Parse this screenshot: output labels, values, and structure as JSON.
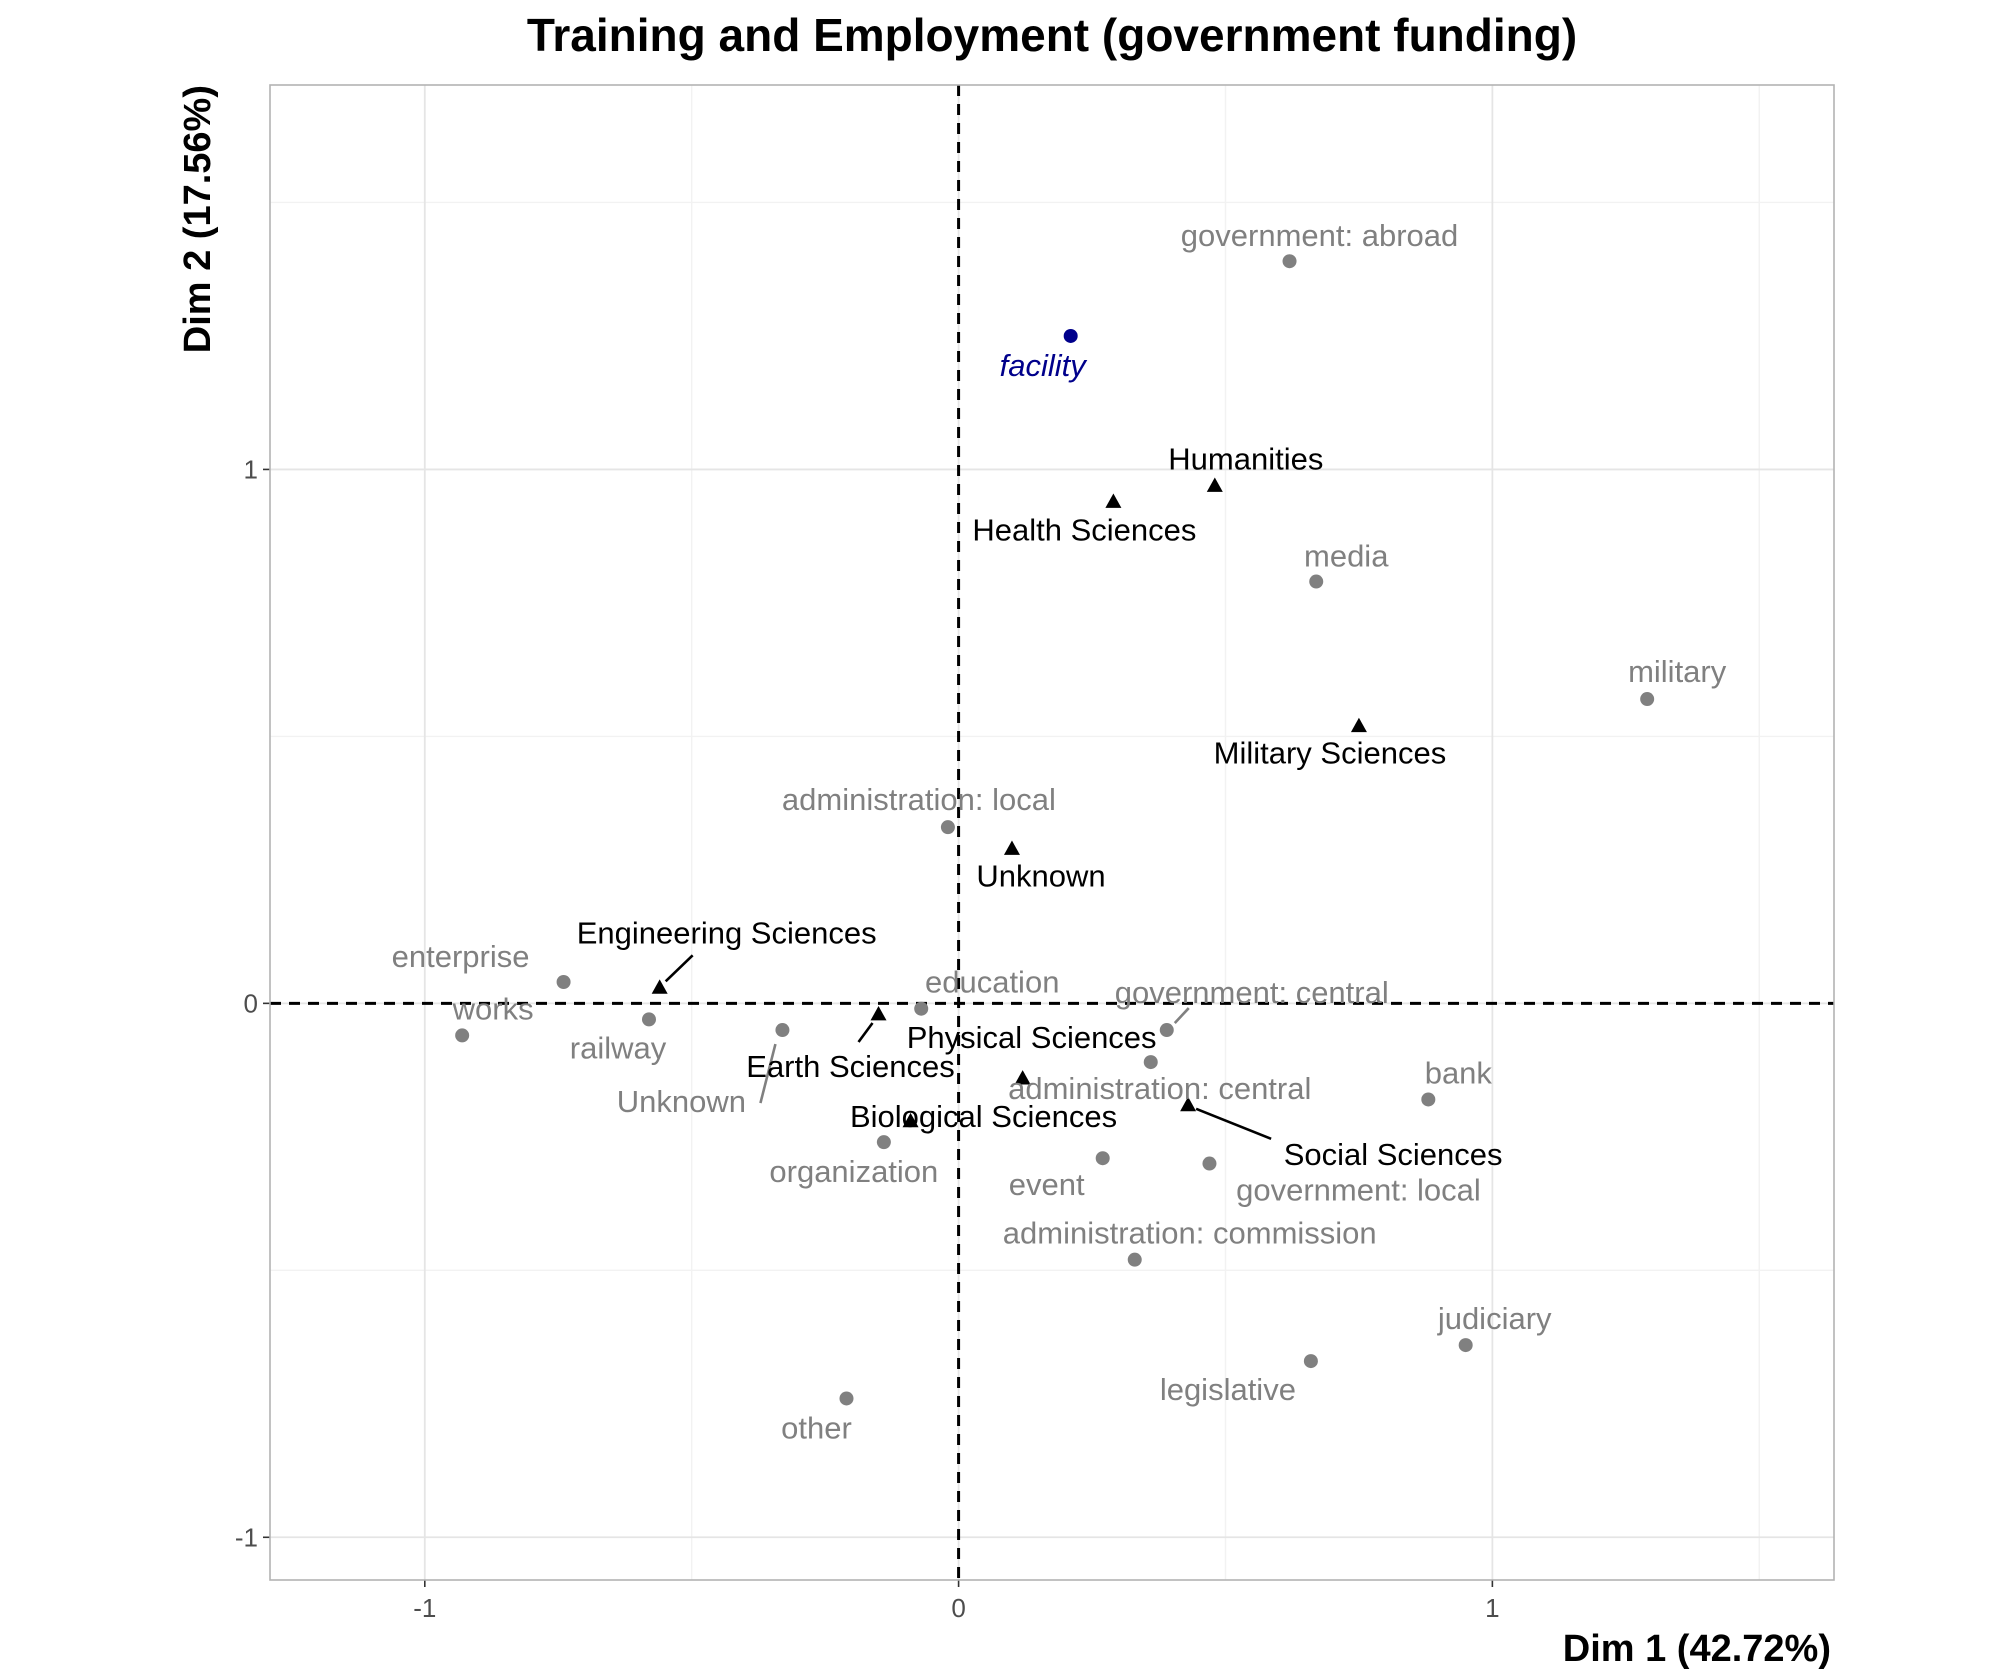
{
  "chart_data": {
    "type": "scatter",
    "title": "Training and Employment (government funding)",
    "xlabel": "Dim 1 (42.72%)",
    "ylabel": "Dim 2 (17.56%)",
    "xlim": [
      -1.29,
      1.64
    ],
    "ylim": [
      -1.08,
      1.72
    ],
    "x_ticks": [
      -1,
      0,
      1
    ],
    "y_ticks": [
      -1,
      0,
      1
    ],
    "x_tick_labels": [
      "-1",
      "0",
      "1"
    ],
    "y_tick_labels": [
      "-1",
      "0",
      "1"
    ],
    "grid": true,
    "legend": "none",
    "reference_lines": {
      "x": 0,
      "y": 0,
      "style": "dashed"
    },
    "colors": {
      "employment": "#808080",
      "training": "#000000",
      "supplementary": "#00008b",
      "grid_major": "#e5e5e5",
      "grid_minor": "#f2f2f2",
      "panel_border": "#b3b3b3"
    },
    "series": [
      {
        "name": "",
        "marker": "circle",
        "color": "#808080",
        "points": [
          {
            "label": "government: abroad",
            "x": 0.62,
            "y": 1.39
          },
          {
            "label": "media",
            "x": 0.67,
            "y": 0.79
          },
          {
            "label": "military",
            "x": 1.29,
            "y": 0.57
          },
          {
            "label": "administration: local",
            "x": -0.02,
            "y": 0.33
          },
          {
            "label": "enterprise",
            "x": -0.74,
            "y": 0.04
          },
          {
            "label": "works",
            "x": -0.93,
            "y": -0.06
          },
          {
            "label": "railway",
            "x": -0.58,
            "y": -0.03
          },
          {
            "label": "Unknown",
            "x": -0.33,
            "y": -0.05
          },
          {
            "label": "education",
            "x": -0.07,
            "y": -0.01
          },
          {
            "label": "government: central",
            "x": 0.39,
            "y": -0.05
          },
          {
            "label": "administration: central",
            "x": 0.36,
            "y": -0.11
          },
          {
            "label": "bank",
            "x": 0.88,
            "y": -0.18
          },
          {
            "label": "organization",
            "x": -0.14,
            "y": -0.26
          },
          {
            "label": "event",
            "x": 0.27,
            "y": -0.29
          },
          {
            "label": "government: local",
            "x": 0.47,
            "y": -0.3
          },
          {
            "label": "administration: commission",
            "x": 0.33,
            "y": -0.48
          },
          {
            "label": "judiciary",
            "x": 0.95,
            "y": -0.64
          },
          {
            "label": "legislative",
            "x": 0.66,
            "y": -0.67
          },
          {
            "label": "other",
            "x": -0.21,
            "y": -0.74
          }
        ]
      },
      {
        "name": "",
        "marker": "triangle",
        "color": "#000000",
        "points": [
          {
            "label": "Humanities",
            "x": 0.48,
            "y": 0.97
          },
          {
            "label": "Health Sciences",
            "x": 0.29,
            "y": 0.94
          },
          {
            "label": "Military Sciences",
            "x": 0.75,
            "y": 0.52
          },
          {
            "label": "Unknown",
            "x": 0.1,
            "y": 0.29
          },
          {
            "label": "Engineering Sciences",
            "x": -0.56,
            "y": 0.03
          },
          {
            "label": "Earth Sciences",
            "x": -0.15,
            "y": -0.02
          },
          {
            "label": "Physical Sciences",
            "x": 0.12,
            "y": -0.14
          },
          {
            "label": "Social Sciences",
            "x": 0.43,
            "y": -0.19
          },
          {
            "label": "Biological Sciences",
            "x": -0.09,
            "y": -0.22
          }
        ]
      },
      {
        "name": "",
        "marker": "circle",
        "color": "#00008b",
        "italic": true,
        "points": [
          {
            "label": "facility",
            "x": 0.21,
            "y": 1.25
          }
        ]
      }
    ]
  }
}
